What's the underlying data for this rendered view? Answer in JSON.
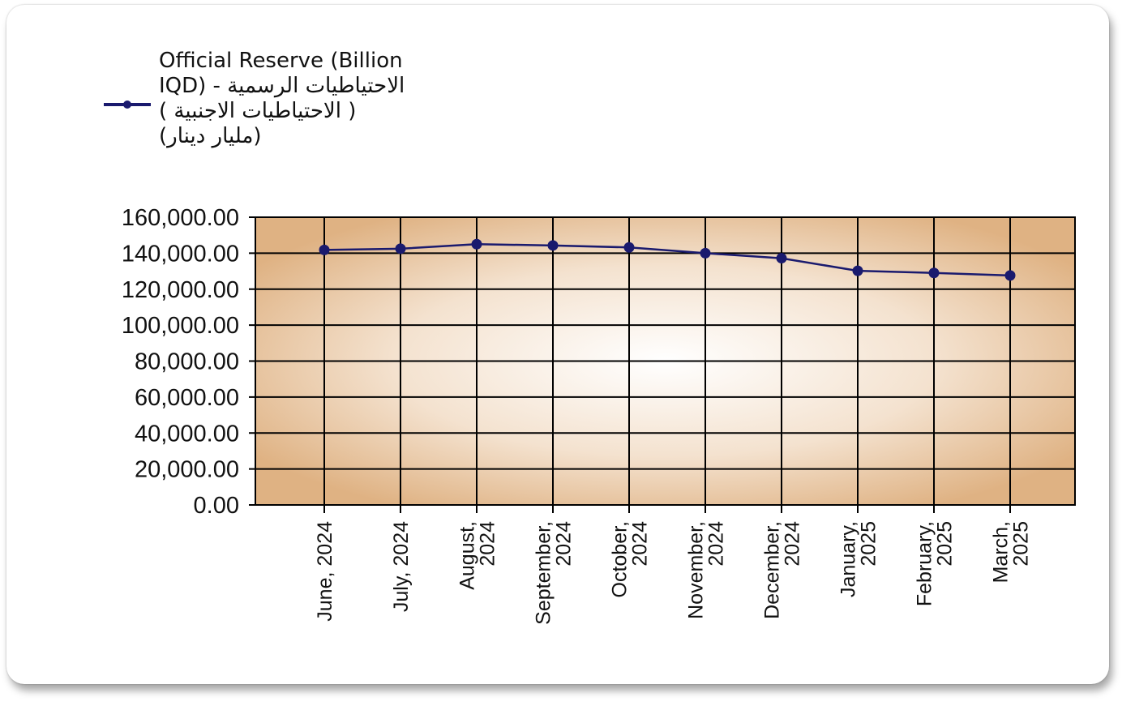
{
  "legend": {
    "label": "Official Reserve (Billion IQD) - الاحتياطيات الرسمية ( الاحتياطيات الاجنبية ) (مليار دينار)",
    "label_lines": [
      "Official Reserve (Billion",
      "IQD) - الاحتياطيات الرسمية",
      "( الاحتياطيات الاجنبية )",
      "(مليار دينار)"
    ]
  },
  "colors": {
    "series": "#1a1a6e",
    "plot_edge": "#dfb283",
    "plot_center": "#ffffff",
    "grid": "#000000"
  },
  "chart_data": {
    "type": "line",
    "title": "",
    "xlabel": "",
    "ylabel": "",
    "categories": [
      [
        "June, 2024"
      ],
      [
        "July, 2024"
      ],
      [
        "August,",
        "2024"
      ],
      [
        "September,",
        "2024"
      ],
      [
        "October,",
        "2024"
      ],
      [
        "November,",
        "2024"
      ],
      [
        "December,",
        "2024"
      ],
      [
        "January,",
        "2025"
      ],
      [
        "February,",
        "2025"
      ],
      [
        "March,",
        "2025"
      ]
    ],
    "series": [
      {
        "name": "Official Reserve (Billion IQD) - الاحتياطيات الرسمية ( الاحتياطيات الاجنبية ) (مليار دينار)",
        "values": [
          141800,
          142500,
          145000,
          144300,
          143200,
          140000,
          137200,
          130200,
          129000,
          127600
        ]
      }
    ],
    "ylim": [
      0,
      160000
    ],
    "yticks": [
      0,
      20000,
      40000,
      60000,
      80000,
      100000,
      120000,
      140000,
      160000
    ],
    "ytick_labels": [
      "0.00",
      "20,000.00",
      "40,000.00",
      "60,000.00",
      "80,000.00",
      "100,000.00",
      "120,000.00",
      "140,000.00",
      "160,000.00"
    ],
    "grid": true,
    "legend_position": "top-left",
    "marker": "circle"
  }
}
